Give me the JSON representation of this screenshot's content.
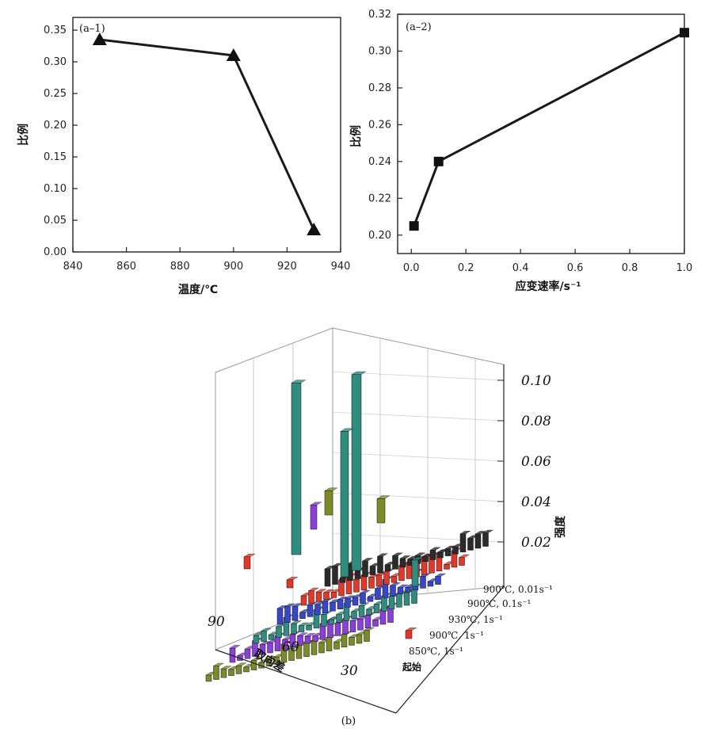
{
  "chart_data": [
    {
      "id": "a-1",
      "type": "line",
      "panel_label": "(a–1)",
      "xlabel": "温度/℃",
      "ylabel": "比例",
      "xlim": [
        840,
        940
      ],
      "ylim": [
        0.0,
        0.37
      ],
      "xticks": [
        "840",
        "860",
        "880",
        "900",
        "920",
        "940"
      ],
      "yticks": [
        "0.00",
        "0.05",
        "0.10",
        "0.15",
        "0.20",
        "0.25",
        "0.30",
        "0.35"
      ],
      "marker": "triangle",
      "x": [
        850,
        900,
        930
      ],
      "y": [
        0.335,
        0.31,
        0.035
      ]
    },
    {
      "id": "a-2",
      "type": "line",
      "panel_label": "(a–2)",
      "xlabel": "应变速率/s⁻¹",
      "ylabel": "比例",
      "xlim": [
        -0.05,
        1.0
      ],
      "ylim": [
        0.19,
        0.32
      ],
      "xticks": [
        "0.0",
        "0.2",
        "0.4",
        "0.6",
        "0.8",
        "1.0"
      ],
      "yticks": [
        "0.20",
        "0.22",
        "0.24",
        "0.26",
        "0.28",
        "0.30",
        "0.32"
      ],
      "marker": "square",
      "x": [
        0.01,
        0.1,
        1.0
      ],
      "y": [
        0.205,
        0.24,
        0.31
      ]
    },
    {
      "id": "b",
      "type": "bar",
      "panel_label": "(b)",
      "xlabel": "取向差",
      "zlabel": "强度",
      "xticks": [
        "90",
        "60",
        "30"
      ],
      "zticks": [
        "0.02",
        "0.04",
        "0.06",
        "0.08",
        "0.10"
      ],
      "zlim": [
        0.0,
        0.11
      ],
      "series": [
        {
          "name": "起始",
          "color": "#2b2b2b"
        },
        {
          "name": "850℃, 1s⁻¹",
          "color": "#e0392a"
        },
        {
          "name": "900℃, 1s⁻¹",
          "color": "#3a46c8"
        },
        {
          "name": "930℃, 1s⁻¹",
          "color": "#2f8c7e"
        },
        {
          "name": "900℃, 0.1s⁻¹",
          "color": "#8a3fd6"
        },
        {
          "name": "900℃, 0.01s⁻¹",
          "color": "#7c8a2a"
        }
      ]
    }
  ]
}
